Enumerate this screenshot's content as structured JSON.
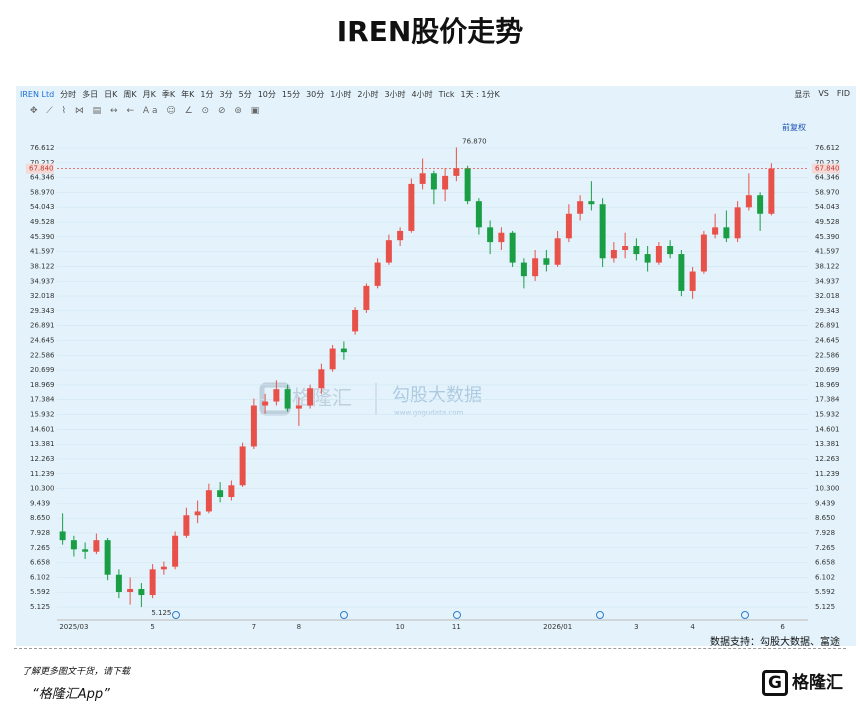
{
  "title": "IREN股价走势",
  "toolbar": [
    "IREN Ltd",
    "分时",
    "多日",
    "日K",
    "周K",
    "月K",
    "季K",
    "年K",
    "1分",
    "3分",
    "5分",
    "10分",
    "15分",
    "30分",
    "1小时",
    "2小时",
    "3小时",
    "4小时",
    "Tick",
    "1天 : 1分K"
  ],
  "toolbar_right": [
    "显示",
    "VS",
    "FID"
  ],
  "adjust": "前复权",
  "source": "数据支持：勾股大数据、富途",
  "footer": {
    "line1": "了解更多图文干货，请下载",
    "line2": "“格隆汇App”",
    "logo": "格隆汇"
  },
  "watermark": {
    "brand": "格隆汇",
    "partner": "勾股大数据",
    "url": "www.gogudata.com"
  },
  "chart_data": {
    "type": "candlestick",
    "log_scale": true,
    "up_color": "#e8504a",
    "down_color": "#1a9e45",
    "categories": [
      null,
      "2025/03",
      null,
      null,
      null,
      null,
      null,
      null,
      "5",
      null,
      null,
      null,
      null,
      null,
      null,
      null,
      null,
      "7",
      null,
      null,
      null,
      "8",
      null,
      null,
      null,
      null,
      null,
      null,
      null,
      null,
      "10",
      null,
      null,
      null,
      null,
      "11",
      null,
      null,
      null,
      null,
      null,
      null,
      null,
      null,
      "2026/01",
      null,
      null,
      null,
      null,
      null,
      null,
      "3",
      null,
      null,
      null,
      null,
      "4",
      null,
      null,
      null,
      null,
      null,
      null,
      null,
      "6",
      null
    ],
    "open": [
      8.0,
      7.6,
      7.2,
      7.1,
      7.6,
      6.2,
      5.6,
      5.7,
      5.5,
      6.4,
      6.5,
      7.8,
      8.8,
      9.0,
      10.2,
      9.8,
      10.5,
      13.2,
      16.8,
      17.2,
      18.5,
      16.5,
      16.8,
      18.6,
      20.8,
      23.5,
      26.0,
      29.5,
      34.0,
      39.0,
      44.5,
      47.0,
      62.0,
      66.0,
      60.0,
      65.0,
      68.0,
      56.0,
      48.0,
      44.0,
      46.5,
      39.0,
      36.0,
      40.0,
      38.5,
      45.0,
      52.0,
      56.0,
      55.0,
      40.0,
      42.0,
      43.0,
      41.0,
      39.0,
      43.0,
      41.0,
      33.0,
      37.0,
      46.0,
      48.0,
      45.0,
      54.0,
      58.0,
      52.0,
      null,
      null
    ],
    "high": [
      8.9,
      7.8,
      7.5,
      7.9,
      7.7,
      6.4,
      6.1,
      5.9,
      6.6,
      6.7,
      8.0,
      9.2,
      9.6,
      10.6,
      10.7,
      10.8,
      13.5,
      17.5,
      18.0,
      19.5,
      19.0,
      17.6,
      19.0,
      21.5,
      24.0,
      24.5,
      30.0,
      34.5,
      40.0,
      46.0,
      48.0,
      64.0,
      72.0,
      67.0,
      68.0,
      76.87,
      69.0,
      57.0,
      50.0,
      48.0,
      47.0,
      40.0,
      42.0,
      42.0,
      47.0,
      55.0,
      58.0,
      63.0,
      57.0,
      44.0,
      46.5,
      45.0,
      43.0,
      44.0,
      44.5,
      42.0,
      38.0,
      47.0,
      52.0,
      53.0,
      56.0,
      66.0,
      59.0,
      70.0,
      null,
      null
    ],
    "low": [
      7.4,
      6.9,
      6.8,
      7.0,
      6.0,
      5.4,
      5.2,
      5.125,
      5.4,
      6.2,
      6.4,
      7.7,
      8.4,
      8.9,
      9.5,
      9.6,
      10.4,
      13.0,
      16.0,
      16.8,
      16.2,
      14.9,
      16.5,
      18.0,
      20.5,
      22.0,
      25.5,
      29.0,
      33.5,
      38.5,
      43.0,
      46.5,
      60.0,
      55.0,
      56.0,
      63.0,
      55.0,
      46.0,
      41.0,
      42.0,
      38.0,
      33.5,
      35.0,
      37.0,
      38.0,
      44.0,
      50.0,
      53.0,
      38.0,
      39.0,
      40.0,
      39.5,
      37.0,
      38.5,
      40.0,
      32.0,
      31.5,
      36.5,
      45.0,
      44.0,
      44.0,
      53.0,
      47.0,
      51.5,
      null,
      null
    ],
    "close": [
      7.6,
      7.2,
      7.1,
      7.6,
      6.2,
      5.6,
      5.7,
      5.5,
      6.4,
      6.5,
      7.8,
      8.8,
      9.0,
      10.2,
      9.8,
      10.5,
      13.2,
      16.8,
      17.2,
      18.5,
      16.5,
      16.8,
      18.6,
      20.8,
      23.5,
      23.0,
      29.5,
      34.0,
      39.0,
      44.5,
      47.0,
      62.0,
      66.0,
      60.0,
      65.0,
      68.0,
      56.0,
      48.0,
      44.0,
      46.5,
      39.0,
      36.0,
      40.0,
      38.5,
      45.0,
      52.0,
      56.0,
      55.0,
      40.0,
      42.0,
      43.0,
      41.0,
      39.0,
      43.0,
      41.0,
      33.0,
      37.0,
      46.0,
      48.0,
      45.0,
      54.0,
      58.0,
      52.0,
      67.84,
      null,
      null
    ],
    "high_label": "76.870",
    "low_label": "5.125",
    "last_label": "67.840",
    "ylim": [
      4.89,
      80.3
    ],
    "yticks": [
      5.125,
      5.592,
      6.102,
      6.658,
      7.265,
      7.928,
      {
        "value": 8.65,
        "label": "8.650"
      },
      9.439,
      {
        "value": 10.3,
        "label": "10.300"
      },
      11.239,
      12.263,
      13.381,
      14.601,
      15.932,
      17.384,
      18.969,
      20.699,
      22.586,
      24.645,
      26.891,
      29.343,
      32.018,
      34.937,
      38.122,
      41.597,
      {
        "value": 45.39,
        "label": "45.390"
      },
      49.528,
      54.043,
      {
        "value": 58.97,
        "label": "58.970"
      },
      64.346,
      70.212,
      76.612
    ],
    "grid": true
  }
}
